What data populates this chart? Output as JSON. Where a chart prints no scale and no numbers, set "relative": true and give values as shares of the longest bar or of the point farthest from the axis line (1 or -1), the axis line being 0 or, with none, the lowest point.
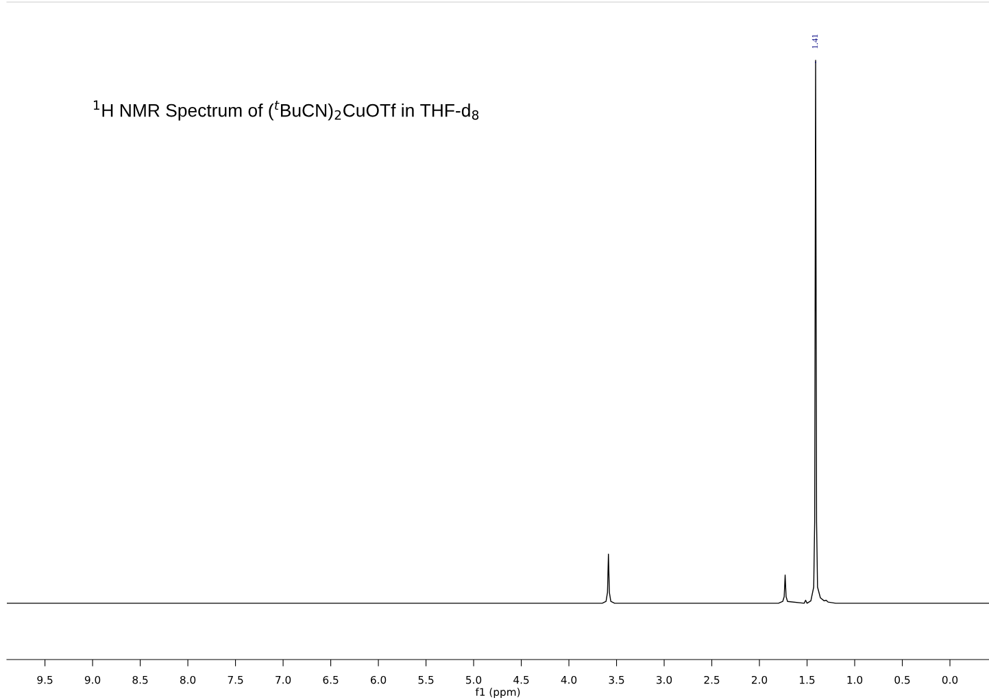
{
  "chart_data": {
    "type": "line",
    "relative": true,
    "title": "$^{1}$H NMR Spectrum of ($^{t}$BuCN)$_{2}$CuOTf in THF-d$_{8}$",
    "xlabel": "f1 (ppm)",
    "x": [
      9.9,
      3.65,
      3.61,
      3.595,
      3.585,
      3.575,
      3.56,
      3.52,
      1.8,
      1.755,
      1.74,
      1.73,
      1.72,
      1.705,
      1.53,
      1.515,
      1.5,
      1.46,
      1.43,
      1.42,
      1.41,
      1.4,
      1.39,
      1.36,
      1.32,
      1.3,
      1.28,
      1.2,
      -0.41
    ],
    "series": [
      {
        "color": "#000000",
        "values": [
          0.094,
          0.094,
          0.097,
          0.112,
          0.176,
          0.112,
          0.097,
          0.094,
          0.094,
          0.097,
          0.105,
          0.141,
          0.105,
          0.097,
          0.094,
          0.099,
          0.094,
          0.098,
          0.121,
          0.23,
          1,
          0.23,
          0.121,
          0.103,
          0.098,
          0.099,
          0.096,
          0.094,
          0.094
        ]
      }
    ],
    "xlim": [
      9.9,
      -0.41
    ],
    "xticks": [
      {
        "value": 9.5,
        "label": "9.5"
      },
      {
        "value": 9.0,
        "label": "9.0"
      },
      {
        "value": 8.5,
        "label": "8.5"
      },
      {
        "value": 8.0,
        "label": "8.0"
      },
      {
        "value": 7.5,
        "label": "7.5"
      },
      {
        "value": 7.0,
        "label": "7.0"
      },
      {
        "value": 6.5,
        "label": "6.5"
      },
      {
        "value": 6.0,
        "label": "6.0"
      },
      {
        "value": 5.5,
        "label": "5.5"
      },
      {
        "value": 5.0,
        "label": "5.0"
      },
      {
        "value": 4.5,
        "label": "4.5"
      },
      {
        "value": 4.0,
        "label": "4.0"
      },
      {
        "value": 3.5,
        "label": "3.5"
      },
      {
        "value": 3.0,
        "label": "3.0"
      },
      {
        "value": 2.5,
        "label": "2.5"
      },
      {
        "value": 2.0,
        "label": "2.0"
      },
      {
        "value": 1.5,
        "label": "1.5"
      },
      {
        "value": 1.0,
        "label": "1.0"
      },
      {
        "value": 0.5,
        "label": "0.5"
      },
      {
        "value": 0.0,
        "label": "0.0"
      }
    ],
    "annotations": [
      {
        "text": "1.41",
        "x": 1.41,
        "y": 1
      }
    ],
    "grid": false,
    "legend": false,
    "marker": "none",
    "line_style": "solid"
  }
}
